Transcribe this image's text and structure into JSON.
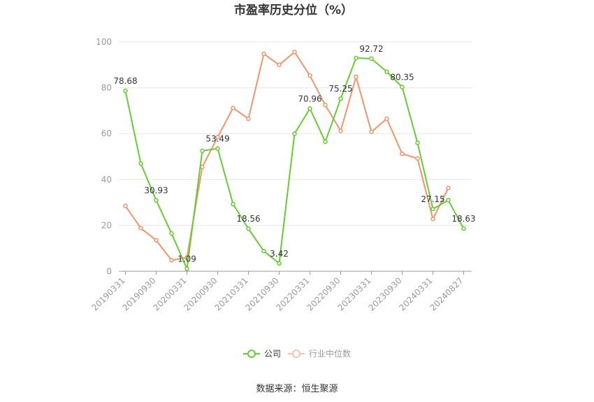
{
  "chart_data": {
    "type": "line",
    "title": "市盈率历史分位（%）",
    "ylim": [
      0,
      100
    ],
    "yticks": [
      0,
      20,
      40,
      60,
      80,
      100
    ],
    "grid": true,
    "legend_position": "bottom",
    "x_tick_labels": [
      "20190331",
      "20190930",
      "20200331",
      "20200930",
      "20210331",
      "20210930",
      "20220331",
      "20220930",
      "20230331",
      "20230930",
      "20240331",
      "20240827"
    ],
    "series": [
      {
        "name": "公司",
        "color": "#66cc33",
        "values": [
          78.68,
          47.0,
          30.93,
          16.5,
          1.09,
          52.5,
          53.49,
          29.3,
          18.56,
          8.8,
          3.42,
          60.0,
          70.96,
          56.5,
          75.25,
          93.0,
          92.72,
          87.0,
          80.35,
          56.0,
          27.15,
          31.0,
          18.63
        ],
        "labels": [
          "78.68",
          null,
          "30.93",
          null,
          "1.09",
          null,
          "53.49",
          null,
          "18.56",
          null,
          "3.42",
          null,
          "70.96",
          null,
          "75.25",
          null,
          "92.72",
          null,
          "80.35",
          null,
          "27.15",
          null,
          "18.63"
        ]
      },
      {
        "name": "行业中位数",
        "color": "#f0956a",
        "values": [
          28.5,
          18.8,
          13.5,
          4.8,
          6.0,
          45.5,
          58.5,
          71.2,
          66.5,
          94.8,
          90.0,
          95.6,
          85.3,
          72.5,
          61.2,
          84.8,
          60.8,
          66.5,
          51.2,
          49.2,
          22.8,
          36.3
        ]
      }
    ],
    "source": "数据来源：恒生聚源"
  }
}
